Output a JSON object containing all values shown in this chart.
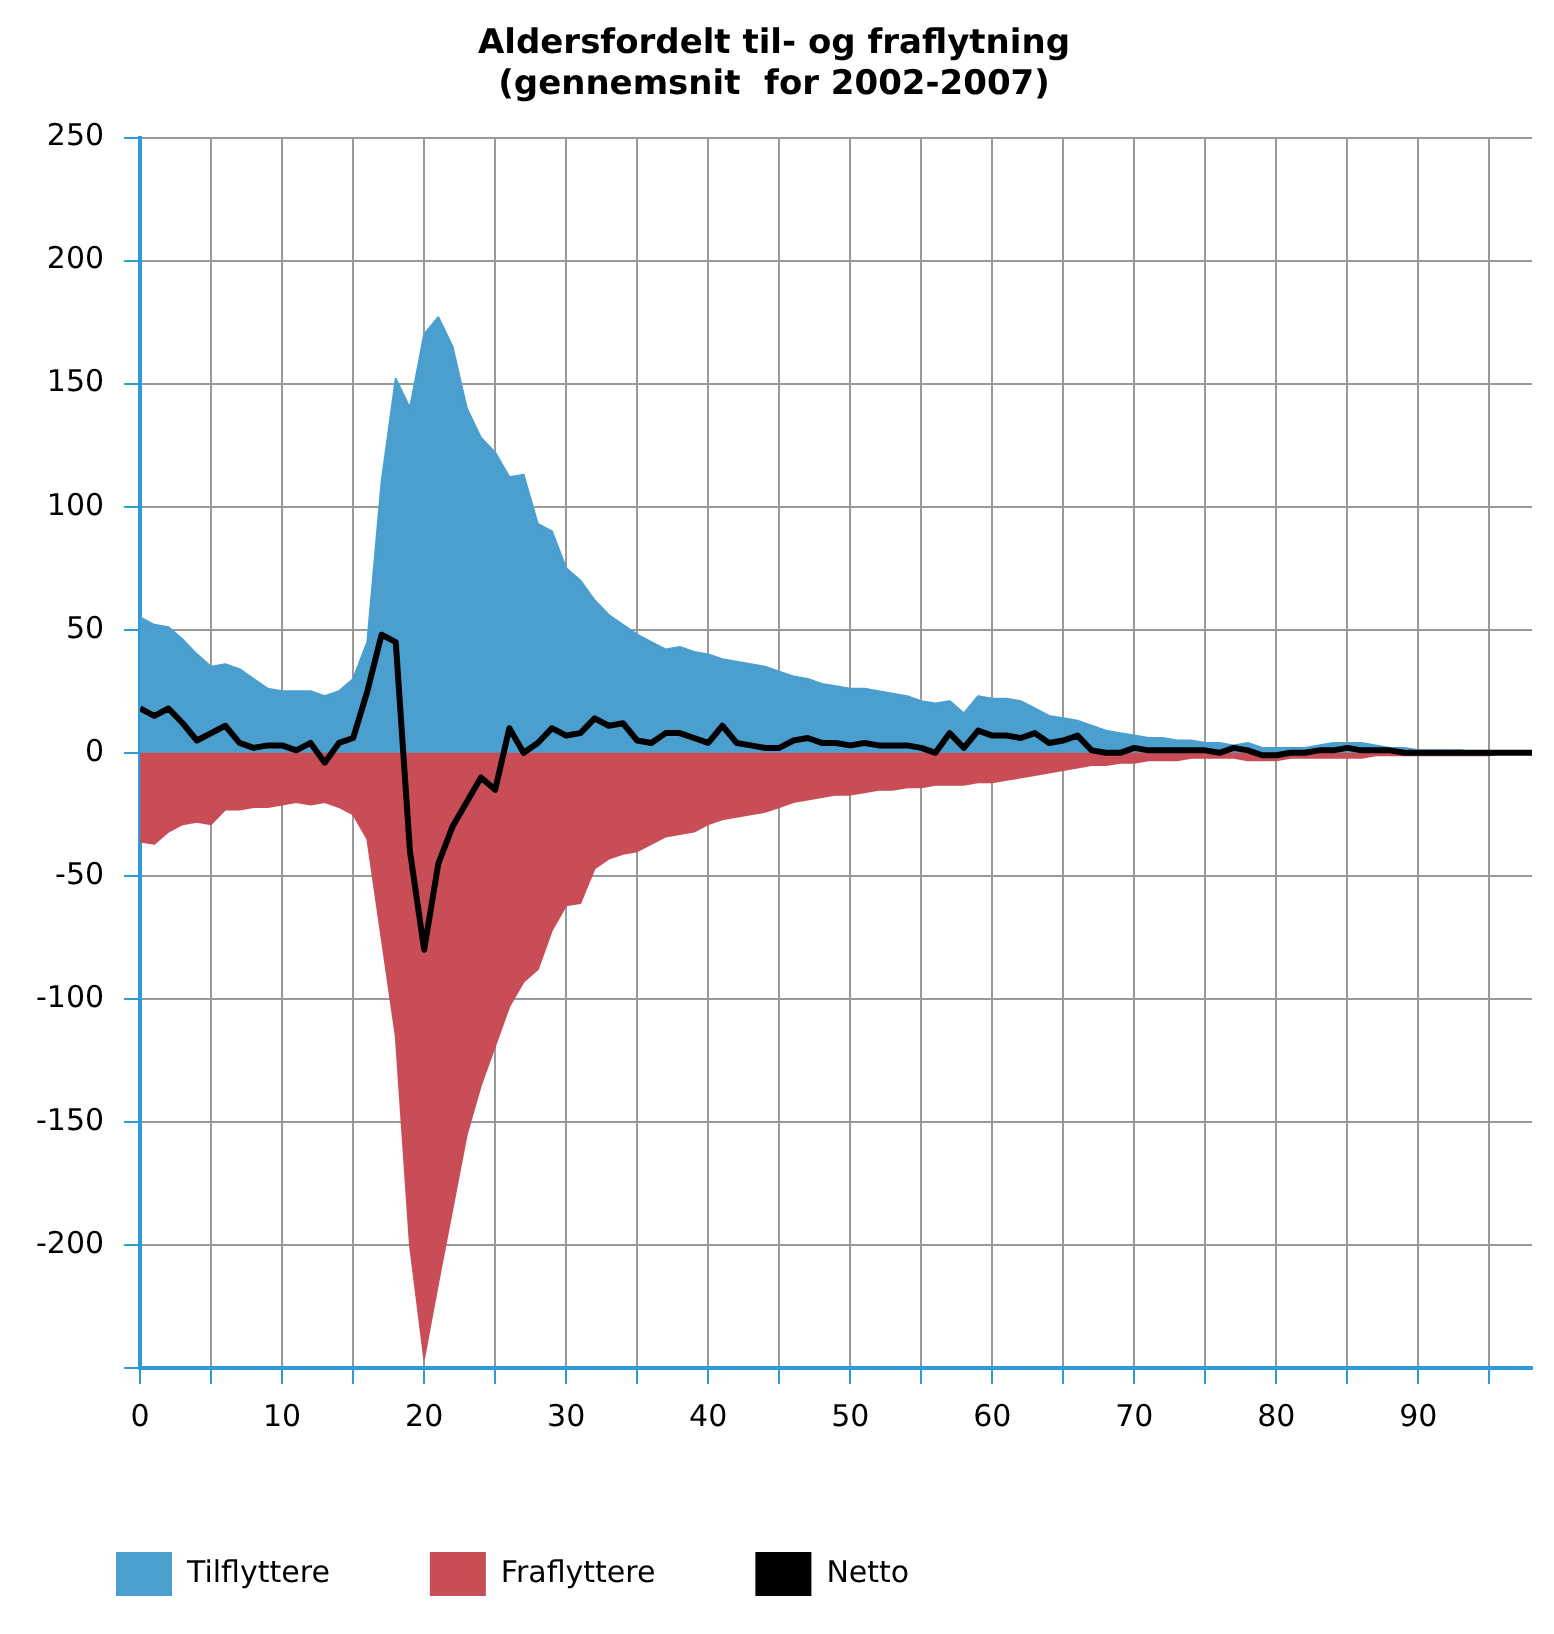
{
  "chart_data": {
    "type": "area",
    "title": "Aldersfordelt til- og fraflytning\n(gennemsnit  for 2002-2007)",
    "x": [
      0,
      1,
      2,
      3,
      4,
      5,
      6,
      7,
      8,
      9,
      10,
      11,
      12,
      13,
      14,
      15,
      16,
      17,
      18,
      19,
      20,
      21,
      22,
      23,
      24,
      25,
      26,
      27,
      28,
      29,
      30,
      31,
      32,
      33,
      34,
      35,
      36,
      37,
      38,
      39,
      40,
      41,
      42,
      43,
      44,
      45,
      46,
      47,
      48,
      49,
      50,
      51,
      52,
      53,
      54,
      55,
      56,
      57,
      58,
      59,
      60,
      61,
      62,
      63,
      64,
      65,
      66,
      67,
      68,
      69,
      70,
      71,
      72,
      73,
      74,
      75,
      76,
      77,
      78,
      79,
      80,
      81,
      82,
      83,
      84,
      85,
      86,
      87,
      88,
      89,
      90,
      91,
      92,
      93,
      94,
      95,
      96,
      97,
      98
    ],
    "series": [
      {
        "name": "Tilflyttere",
        "color": "#4a9fcf",
        "values": [
          55,
          52,
          51,
          46,
          40,
          35,
          36,
          34,
          30,
          26,
          25,
          25,
          25,
          23,
          25,
          30,
          45,
          110,
          152,
          140,
          170,
          177,
          165,
          140,
          128,
          122,
          112,
          113,
          93,
          90,
          75,
          70,
          62,
          56,
          52,
          48,
          45,
          42,
          43,
          41,
          40,
          38,
          37,
          36,
          35,
          33,
          31,
          30,
          28,
          27,
          26,
          26,
          25,
          24,
          23,
          21,
          20,
          21,
          16,
          23,
          22,
          22,
          21,
          18,
          15,
          14,
          13,
          11,
          9,
          8,
          7,
          6,
          6,
          5,
          5,
          4,
          4,
          3,
          4,
          2,
          2,
          2,
          2,
          3,
          4,
          4,
          4,
          3,
          2,
          2,
          1,
          1,
          1,
          1,
          0,
          0,
          0,
          0,
          0
        ]
      },
      {
        "name": "Fraflyttere",
        "color": "#c94d56",
        "values": [
          -36,
          -37,
          -32,
          -29,
          -28,
          -29,
          -23,
          -23,
          -22,
          -22,
          -21,
          -20,
          -21,
          -20,
          -22,
          -25,
          -35,
          -75,
          -115,
          -200,
          -246,
          -215,
          -185,
          -155,
          -135,
          -119,
          -103,
          -93,
          -88,
          -72,
          -62,
          -61,
          -47,
          -43,
          -41,
          -40,
          -37,
          -34,
          -33,
          -32,
          -29,
          -27,
          -26,
          -25,
          -24,
          -22,
          -20,
          -19,
          -18,
          -17,
          -17,
          -16,
          -15,
          -15,
          -14,
          -14,
          -13,
          -13,
          -13,
          -12,
          -12,
          -11,
          -10,
          -9,
          -8,
          -7,
          -6,
          -5,
          -5,
          -4,
          -4,
          -3,
          -3,
          -3,
          -2,
          -2,
          -2,
          -2,
          -3,
          -3,
          -3,
          -2,
          -2,
          -2,
          -2,
          -2,
          -2,
          -1,
          -1,
          -1,
          -1,
          -1,
          -1,
          -1,
          -1,
          -1,
          0,
          0,
          0
        ]
      },
      {
        "name": "Netto",
        "type": "line",
        "color": "#000000",
        "values": [
          18,
          15,
          18,
          12,
          5,
          8,
          11,
          4,
          2,
          3,
          3,
          1,
          4,
          -4,
          4,
          6,
          25,
          48,
          45,
          -40,
          -80,
          -45,
          -30,
          -20,
          -10,
          -15,
          10,
          0,
          4,
          10,
          7,
          8,
          14,
          11,
          12,
          5,
          4,
          8,
          8,
          6,
          4,
          11,
          4,
          3,
          2,
          2,
          5,
          6,
          4,
          4,
          3,
          4,
          3,
          3,
          3,
          2,
          0,
          8,
          2,
          9,
          7,
          7,
          6,
          8,
          4,
          5,
          7,
          1,
          0,
          0,
          2,
          1,
          1,
          1,
          1,
          1,
          0,
          2,
          1,
          -1,
          -1,
          0,
          0,
          1,
          1,
          2,
          1,
          1,
          1,
          0,
          0,
          0,
          0,
          0,
          0,
          0,
          0,
          0,
          0
        ]
      }
    ],
    "xlim": [
      0,
      98
    ],
    "xticks": [
      0,
      {
        "value": 5,
        "label": null
      },
      10,
      {
        "value": 15,
        "label": null
      },
      20,
      {
        "value": 25,
        "label": null
      },
      30,
      {
        "value": 35,
        "label": null
      },
      40,
      {
        "value": 45,
        "label": null
      },
      50,
      {
        "value": 55,
        "label": null
      },
      60,
      {
        "value": 65,
        "label": null
      },
      70,
      {
        "value": 75,
        "label": null
      },
      80,
      {
        "value": 85,
        "label": null
      },
      90,
      {
        "value": 95,
        "label": null
      }
    ],
    "ylim": [
      -250,
      250
    ],
    "yticks": [
      {
        "value": -250,
        "label": null
      },
      -200,
      -150,
      -100,
      -50,
      0,
      50,
      100,
      150,
      200,
      250
    ],
    "grid": true,
    "legend": "bottom",
    "marker": "none",
    "line_style": "solid"
  }
}
